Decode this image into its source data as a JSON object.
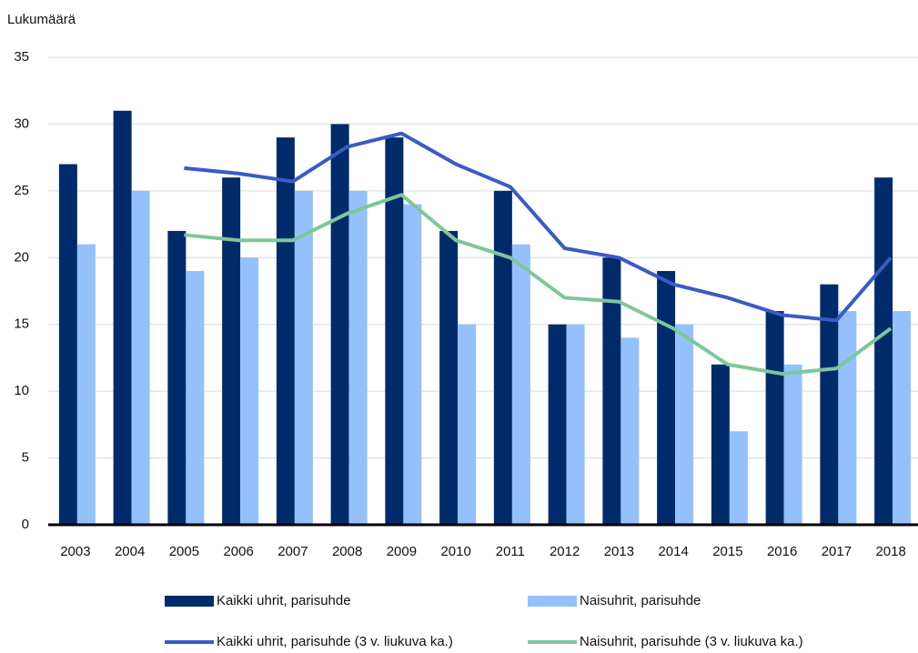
{
  "chart_data": {
    "type": "bar",
    "y_label": "Lukumäärä",
    "categories": [
      "2003",
      "2004",
      "2005",
      "2006",
      "2007",
      "2008",
      "2009",
      "2010",
      "2011",
      "2012",
      "2013",
      "2014",
      "2015",
      "2016",
      "2017",
      "2018"
    ],
    "series": [
      {
        "name": "Kaikki uhrit, parisuhde",
        "type": "bar",
        "color": "#002b6b",
        "values": [
          27,
          31,
          22,
          26,
          29,
          30,
          29,
          22,
          25,
          15,
          20,
          19,
          12,
          16,
          18,
          26
        ]
      },
      {
        "name": "Naisuhrit, parisuhde",
        "type": "bar",
        "color": "#94c1fb",
        "values": [
          21,
          25,
          19,
          20,
          25,
          25,
          24,
          15,
          21,
          15,
          14,
          15,
          7,
          12,
          16,
          16
        ]
      },
      {
        "name": "Kaikki uhrit, parisuhde (3 v. liukuva ka.)",
        "type": "line",
        "color": "#3a5bc6",
        "values": [
          null,
          null,
          26.7,
          26.3,
          25.7,
          28.3,
          29.3,
          27,
          25.3,
          20.7,
          20,
          18,
          17,
          15.7,
          15.3,
          20
        ]
      },
      {
        "name": "Naisuhrit, parisuhde (3 v. liukuva ka.)",
        "type": "line",
        "color": "#7dc79a",
        "values": [
          null,
          null,
          21.7,
          21.3,
          21.3,
          23.3,
          24.7,
          21.3,
          20,
          17,
          16.7,
          14.7,
          12,
          11.3,
          11.7,
          14.7
        ]
      }
    ],
    "ylim": [
      0,
      35
    ],
    "yticks": [
      0,
      5,
      10,
      15,
      20,
      25,
      30,
      35
    ],
    "grid": true
  }
}
